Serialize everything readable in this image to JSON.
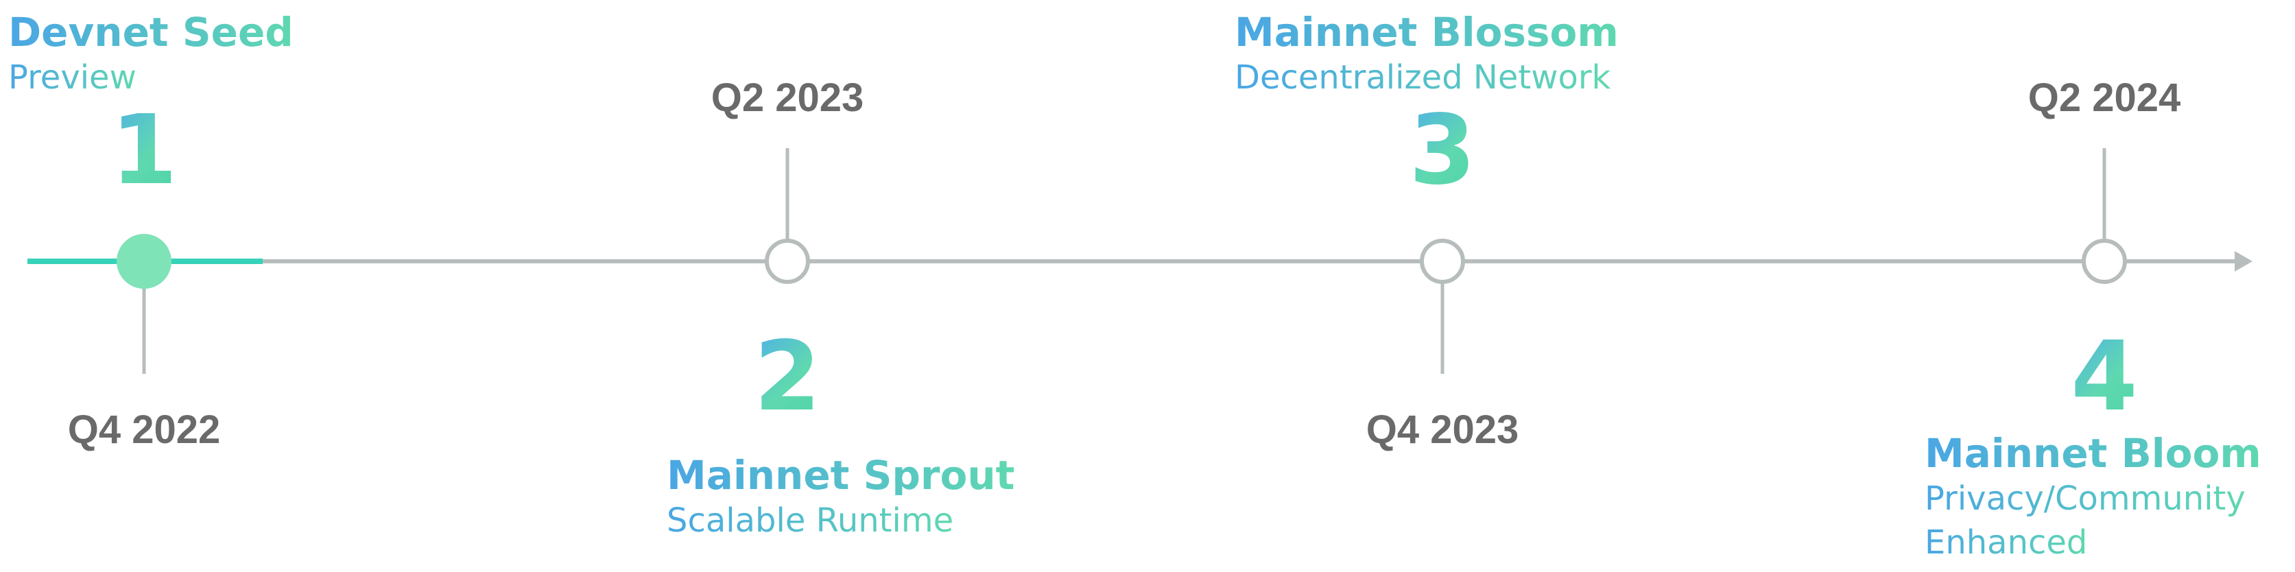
{
  "colors": {
    "axis": "#b7bdbd",
    "active": "#36d2ba",
    "active_dot": "#7fe3b8",
    "quarter_text": "#6a6a6a",
    "accent_blue": "#4aa6e4",
    "accent_green": "#5fd8b0"
  },
  "milestones": [
    {
      "number": "1",
      "quarter": "Q4 2022",
      "title": "Devnet Seed",
      "subtitle": "Preview",
      "active": true
    },
    {
      "number": "2",
      "quarter": "Q2 2023",
      "title": "Mainnet Sprout",
      "subtitle": "Scalable Runtime",
      "active": false
    },
    {
      "number": "3",
      "quarter": "Q4 2023",
      "title": "Mainnet Blossom",
      "subtitle": "Decentralized Network",
      "active": false
    },
    {
      "number": "4",
      "quarter": "Q2 2024",
      "title": "Mainnet Bloom",
      "subtitle": "Privacy/Community",
      "subtitle2": "Enhanced",
      "active": false
    }
  ]
}
